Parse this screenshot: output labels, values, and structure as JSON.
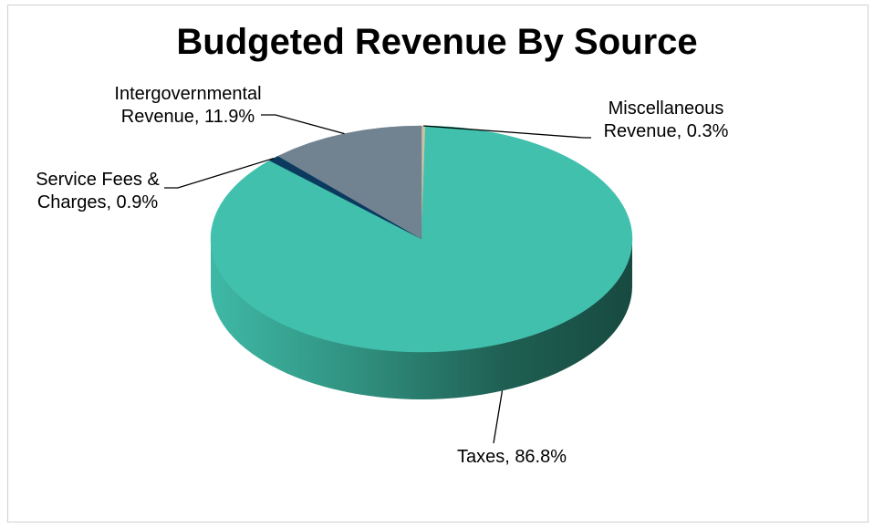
{
  "chart_data": {
    "type": "pie",
    "title": "Budgeted Revenue By Source",
    "three_d": true,
    "legend": "none",
    "slices": [
      {
        "name": "Taxes",
        "value": 86.8,
        "label_lines": [
          "Taxes, 86.8%"
        ],
        "color": "#40c0ad"
      },
      {
        "name": "Service Fees & Charges",
        "value": 0.9,
        "label_lines": [
          "Service Fees &",
          "Charges, 0.9%"
        ],
        "color": "#0b3a5e"
      },
      {
        "name": "Intergovernmental Revenue",
        "value": 11.9,
        "label_lines": [
          "Intergovernmental",
          "Revenue, 11.9%"
        ],
        "color": "#718291"
      },
      {
        "name": "Miscellaneous Revenue",
        "value": 0.3,
        "label_lines": [
          "Miscellaneous",
          "Revenue, 0.3%"
        ],
        "color": "#c8c2a6"
      }
    ]
  }
}
